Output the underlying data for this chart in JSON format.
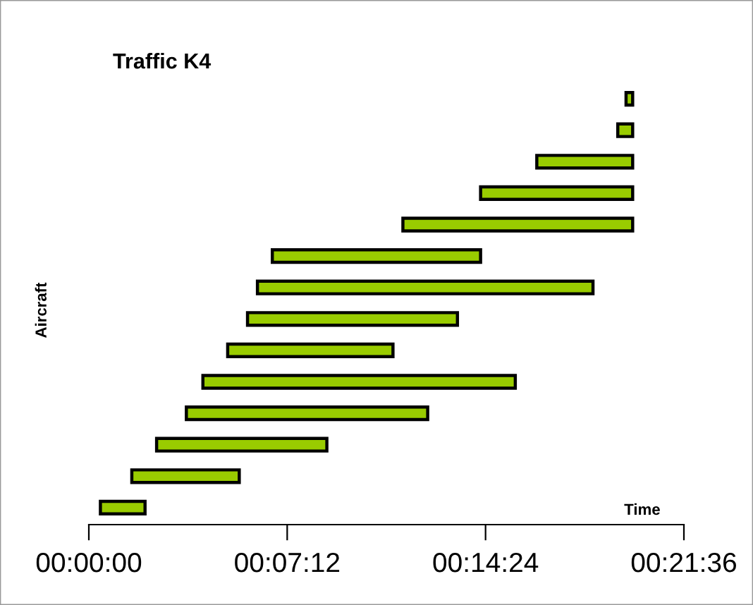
{
  "chart_data": {
    "type": "bar",
    "orientation": "horizontal",
    "title": "Traffic K4",
    "xlabel": "Time",
    "ylabel": "Aircraft",
    "categories": [
      null,
      null,
      null,
      null,
      null,
      null,
      null,
      null,
      null,
      null,
      null,
      null,
      null,
      null
    ],
    "base": [
      0.325,
      0.32,
      0.271,
      0.237,
      0.19,
      0.111,
      0.102,
      0.096,
      0.084,
      0.069,
      0.059,
      0.041,
      0.026,
      0.007
    ],
    "values": [
      0.004,
      0.009,
      0.058,
      0.092,
      0.139,
      0.126,
      0.203,
      0.127,
      0.1,
      0.189,
      0.146,
      0.103,
      0.065,
      0.027
    ],
    "color": "#99cc00",
    "xlim": [
      0,
      0.36
    ],
    "xticks": [
      {
        "value": 0,
        "label": "00:00:00"
      },
      {
        "value": 0.12,
        "label": "00:07:12"
      },
      {
        "value": 0.24,
        "label": "00:14:24"
      },
      {
        "value": 0.36,
        "label": "00:21:36"
      }
    ],
    "grid": false,
    "legend": false
  }
}
